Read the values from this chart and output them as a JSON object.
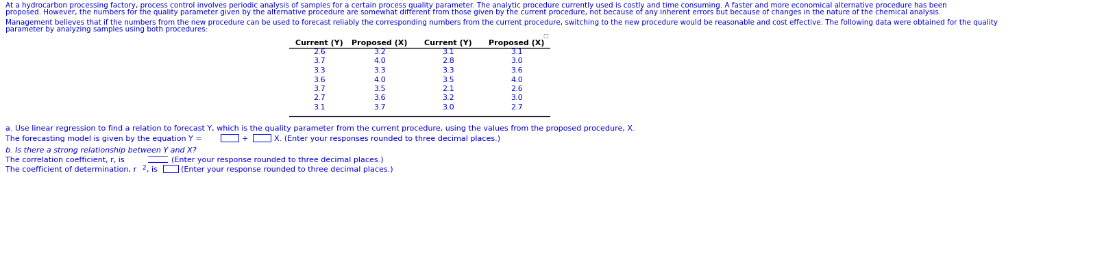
{
  "p1_line1": "At a hydrocarbon processing factory, process control involves periodic analysis of samples for a certain process quality parameter. The analytic procedure currently used is costly and time consuming. A faster and more economical alternative procedure has been",
  "p1_line2": "proposed. However, the numbers for the quality parameter given by the alternative procedure are somewhat different from those given by the current procedure, not because of any inherent errors but because of changes in the nature of the chemical analysis.",
  "p2_line1": "Management believes that if the numbers from the new procedure can be used to forecast reliably the corresponding numbers from the current procedure, switching to the new procedure would be reasonable and cost effective. The following data were obtained for the quality",
  "p2_line2": "parameter by analyzing samples using both procedures:",
  "table_headers": [
    "Current (Y)",
    "Proposed (X)",
    "Current (Y)",
    "Proposed (X)"
  ],
  "col1_current_y": [
    2.6,
    3.7,
    3.3,
    3.6,
    3.7,
    2.7,
    3.1
  ],
  "col1_proposed_x": [
    3.2,
    4.0,
    3.3,
    4.0,
    3.5,
    3.6,
    3.7
  ],
  "col2_current_y": [
    3.1,
    2.8,
    3.3,
    3.5,
    2.1,
    3.2,
    3.0
  ],
  "col2_proposed_x": [
    3.1,
    3.0,
    3.6,
    4.0,
    2.6,
    3.0,
    2.7
  ],
  "text_a": "a. Use linear regression to find a relation to forecast Y, which is the quality parameter from the current procedure, using the values from the proposed procedure, X.",
  "text_b": "b. Is there a strong relationship between Y and X?",
  "blue": "#0000CD",
  "black": "#000000",
  "gray": "#888888",
  "bg": "#ffffff",
  "fs_para": 7.5,
  "fs_table": 8.0,
  "fs_q": 8.0
}
